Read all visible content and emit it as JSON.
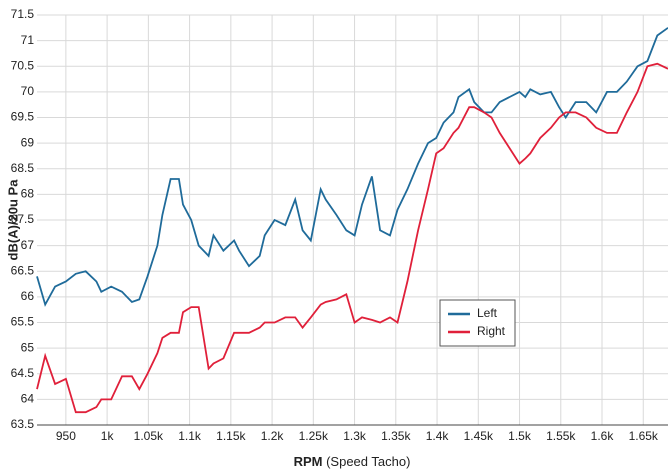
{
  "chart_data": {
    "type": "line",
    "y_label": "dB(A)/20u Pa",
    "x_label_bold": "RPM",
    "x_label": "(Speed Tacho)",
    "x": [
      915,
      925,
      937,
      950,
      962,
      974,
      987,
      993,
      1005,
      1018,
      1030,
      1039,
      1049,
      1061,
      1067,
      1077,
      1087,
      1092,
      1102,
      1111,
      1123,
      1129,
      1141,
      1154,
      1160,
      1172,
      1185,
      1191,
      1203,
      1216,
      1228,
      1237,
      1247,
      1259,
      1265,
      1278,
      1290,
      1300,
      1309,
      1321,
      1331,
      1343,
      1352,
      1364,
      1377,
      1389,
      1399,
      1408,
      1420,
      1426,
      1439,
      1445,
      1457,
      1466,
      1476,
      1488,
      1500,
      1507,
      1513,
      1525,
      1538,
      1548,
      1556,
      1568,
      1581,
      1593,
      1606,
      1618,
      1630,
      1643,
      1655,
      1667,
      1680
    ],
    "series": [
      {
        "name": "Left",
        "color": "#1f6b9a",
        "values": [
          66.4,
          65.85,
          66.2,
          66.3,
          66.45,
          66.5,
          66.3,
          66.1,
          66.2,
          66.1,
          65.9,
          65.95,
          66.4,
          67.0,
          67.6,
          68.3,
          68.3,
          67.8,
          67.5,
          67.0,
          66.8,
          67.2,
          66.9,
          67.1,
          66.9,
          66.6,
          66.8,
          67.2,
          67.5,
          67.4,
          67.9,
          67.3,
          67.1,
          68.1,
          67.9,
          67.6,
          67.3,
          67.2,
          67.8,
          68.35,
          67.3,
          67.2,
          67.7,
          68.1,
          68.6,
          69.0,
          69.1,
          69.4,
          69.6,
          69.9,
          70.05,
          69.8,
          69.6,
          69.6,
          69.8,
          69.9,
          70.0,
          69.9,
          70.05,
          69.95,
          70.0,
          69.7,
          69.5,
          69.8,
          69.8,
          69.6,
          70.0,
          70.0,
          70.2,
          70.5,
          70.6,
          71.1,
          71.25
        ]
      },
      {
        "name": "Right",
        "color": "#e0203a",
        "values": [
          64.2,
          64.85,
          64.3,
          64.4,
          63.75,
          63.75,
          63.85,
          64.0,
          64.0,
          64.45,
          64.45,
          64.2,
          64.5,
          64.9,
          65.2,
          65.3,
          65.3,
          65.7,
          65.8,
          65.8,
          64.6,
          64.7,
          64.8,
          65.3,
          65.3,
          65.3,
          65.4,
          65.5,
          65.5,
          65.6,
          65.6,
          65.4,
          65.6,
          65.85,
          65.9,
          65.95,
          66.05,
          65.5,
          65.6,
          65.55,
          65.5,
          65.6,
          65.5,
          66.3,
          67.3,
          68.1,
          68.8,
          68.9,
          69.2,
          69.3,
          69.7,
          69.7,
          69.6,
          69.5,
          69.2,
          68.9,
          68.6,
          68.7,
          68.8,
          69.1,
          69.3,
          69.5,
          69.6,
          69.6,
          69.5,
          69.3,
          69.2,
          69.2,
          69.6,
          70.0,
          70.5,
          70.55,
          70.45
        ]
      }
    ],
    "xlim": [
      915,
      1680
    ],
    "xticks": [
      950,
      {
        "value": 1000,
        "label": "1k"
      },
      {
        "value": 1050,
        "label": "1.05k"
      },
      {
        "value": 1100,
        "label": "1.1k"
      },
      {
        "value": 1150,
        "label": "1.15k"
      },
      {
        "value": 1200,
        "label": "1.2k"
      },
      {
        "value": 1250,
        "label": "1.25k"
      },
      {
        "value": 1300,
        "label": "1.3k"
      },
      {
        "value": 1350,
        "label": "1.35k"
      },
      {
        "value": 1400,
        "label": "1.4k"
      },
      {
        "value": 1450,
        "label": "1.45k"
      },
      {
        "value": 1500,
        "label": "1.5k"
      },
      {
        "value": 1550,
        "label": "1.55k"
      },
      {
        "value": 1600,
        "label": "1.6k"
      },
      {
        "value": 1650,
        "label": "1.65k"
      }
    ],
    "ylim": [
      63.5,
      71.5
    ],
    "yticks": [
      63.5,
      64,
      64.5,
      65,
      65.5,
      66,
      66.5,
      67,
      67.5,
      68,
      68.5,
      69,
      69.5,
      70,
      70.5,
      71,
      71.5
    ],
    "grid": true
  }
}
